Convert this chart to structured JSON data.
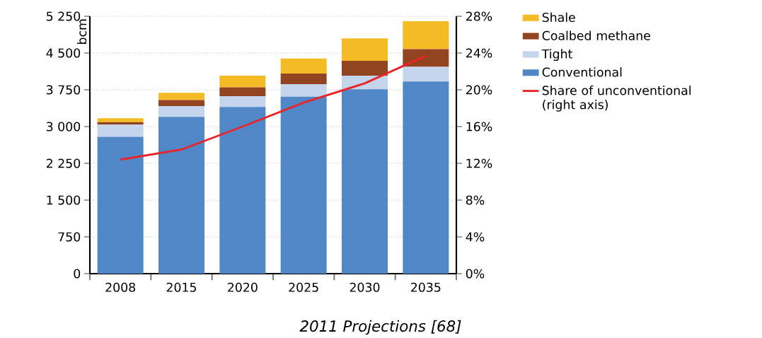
{
  "chart_data": {
    "type": "bar",
    "stacked": true,
    "ylabel": "bcm",
    "annotations": [
      "2011 Projections [68]"
    ],
    "categories": [
      "2008",
      "2015",
      "2020",
      "2025",
      "2030",
      "2035"
    ],
    "series": [
      {
        "name": "Conventional",
        "color": "#5087c7",
        "values": [
          2790,
          3200,
          3400,
          3610,
          3760,
          3920
        ]
      },
      {
        "name": "Tight",
        "color": "#c5d5ec",
        "values": [
          250,
          220,
          220,
          250,
          280,
          300
        ]
      },
      {
        "name": "Coalbed methane",
        "color": "#924421",
        "values": [
          50,
          120,
          180,
          220,
          300,
          360
        ]
      },
      {
        "name": "Shale",
        "color": "#f5bb24",
        "values": [
          80,
          150,
          240,
          310,
          460,
          570
        ]
      },
      {
        "name": "Share of unconventional (right axis)",
        "type": "line",
        "axis": "y2",
        "color": "#e8262a",
        "values": [
          12.4,
          13.5,
          16.0,
          18.6,
          20.7,
          23.7
        ]
      }
    ],
    "ylim": [
      0,
      5250
    ],
    "yticks": [
      0,
      750,
      {
        "value": 1500,
        "label": "1 500"
      },
      {
        "value": 2250,
        "label": "2 250"
      },
      {
        "value": 3000,
        "label": "3 000"
      },
      {
        "value": 3750,
        "label": "3 750"
      },
      {
        "value": 4500,
        "label": "4 500"
      },
      {
        "value": 5250,
        "label": "5 250"
      }
    ],
    "y2lim": [
      0,
      28
    ],
    "y2ticks": [
      {
        "value": 0,
        "label": "0%"
      },
      {
        "value": 4,
        "label": "4%"
      },
      {
        "value": 8,
        "label": "8%"
      },
      {
        "value": 12,
        "label": "12%"
      },
      {
        "value": 16,
        "label": "16%"
      },
      {
        "value": 20,
        "label": "20%"
      },
      {
        "value": 24,
        "label": "24%"
      },
      {
        "value": 28,
        "label": "28%"
      }
    ],
    "grid": "y",
    "legend": "right"
  }
}
